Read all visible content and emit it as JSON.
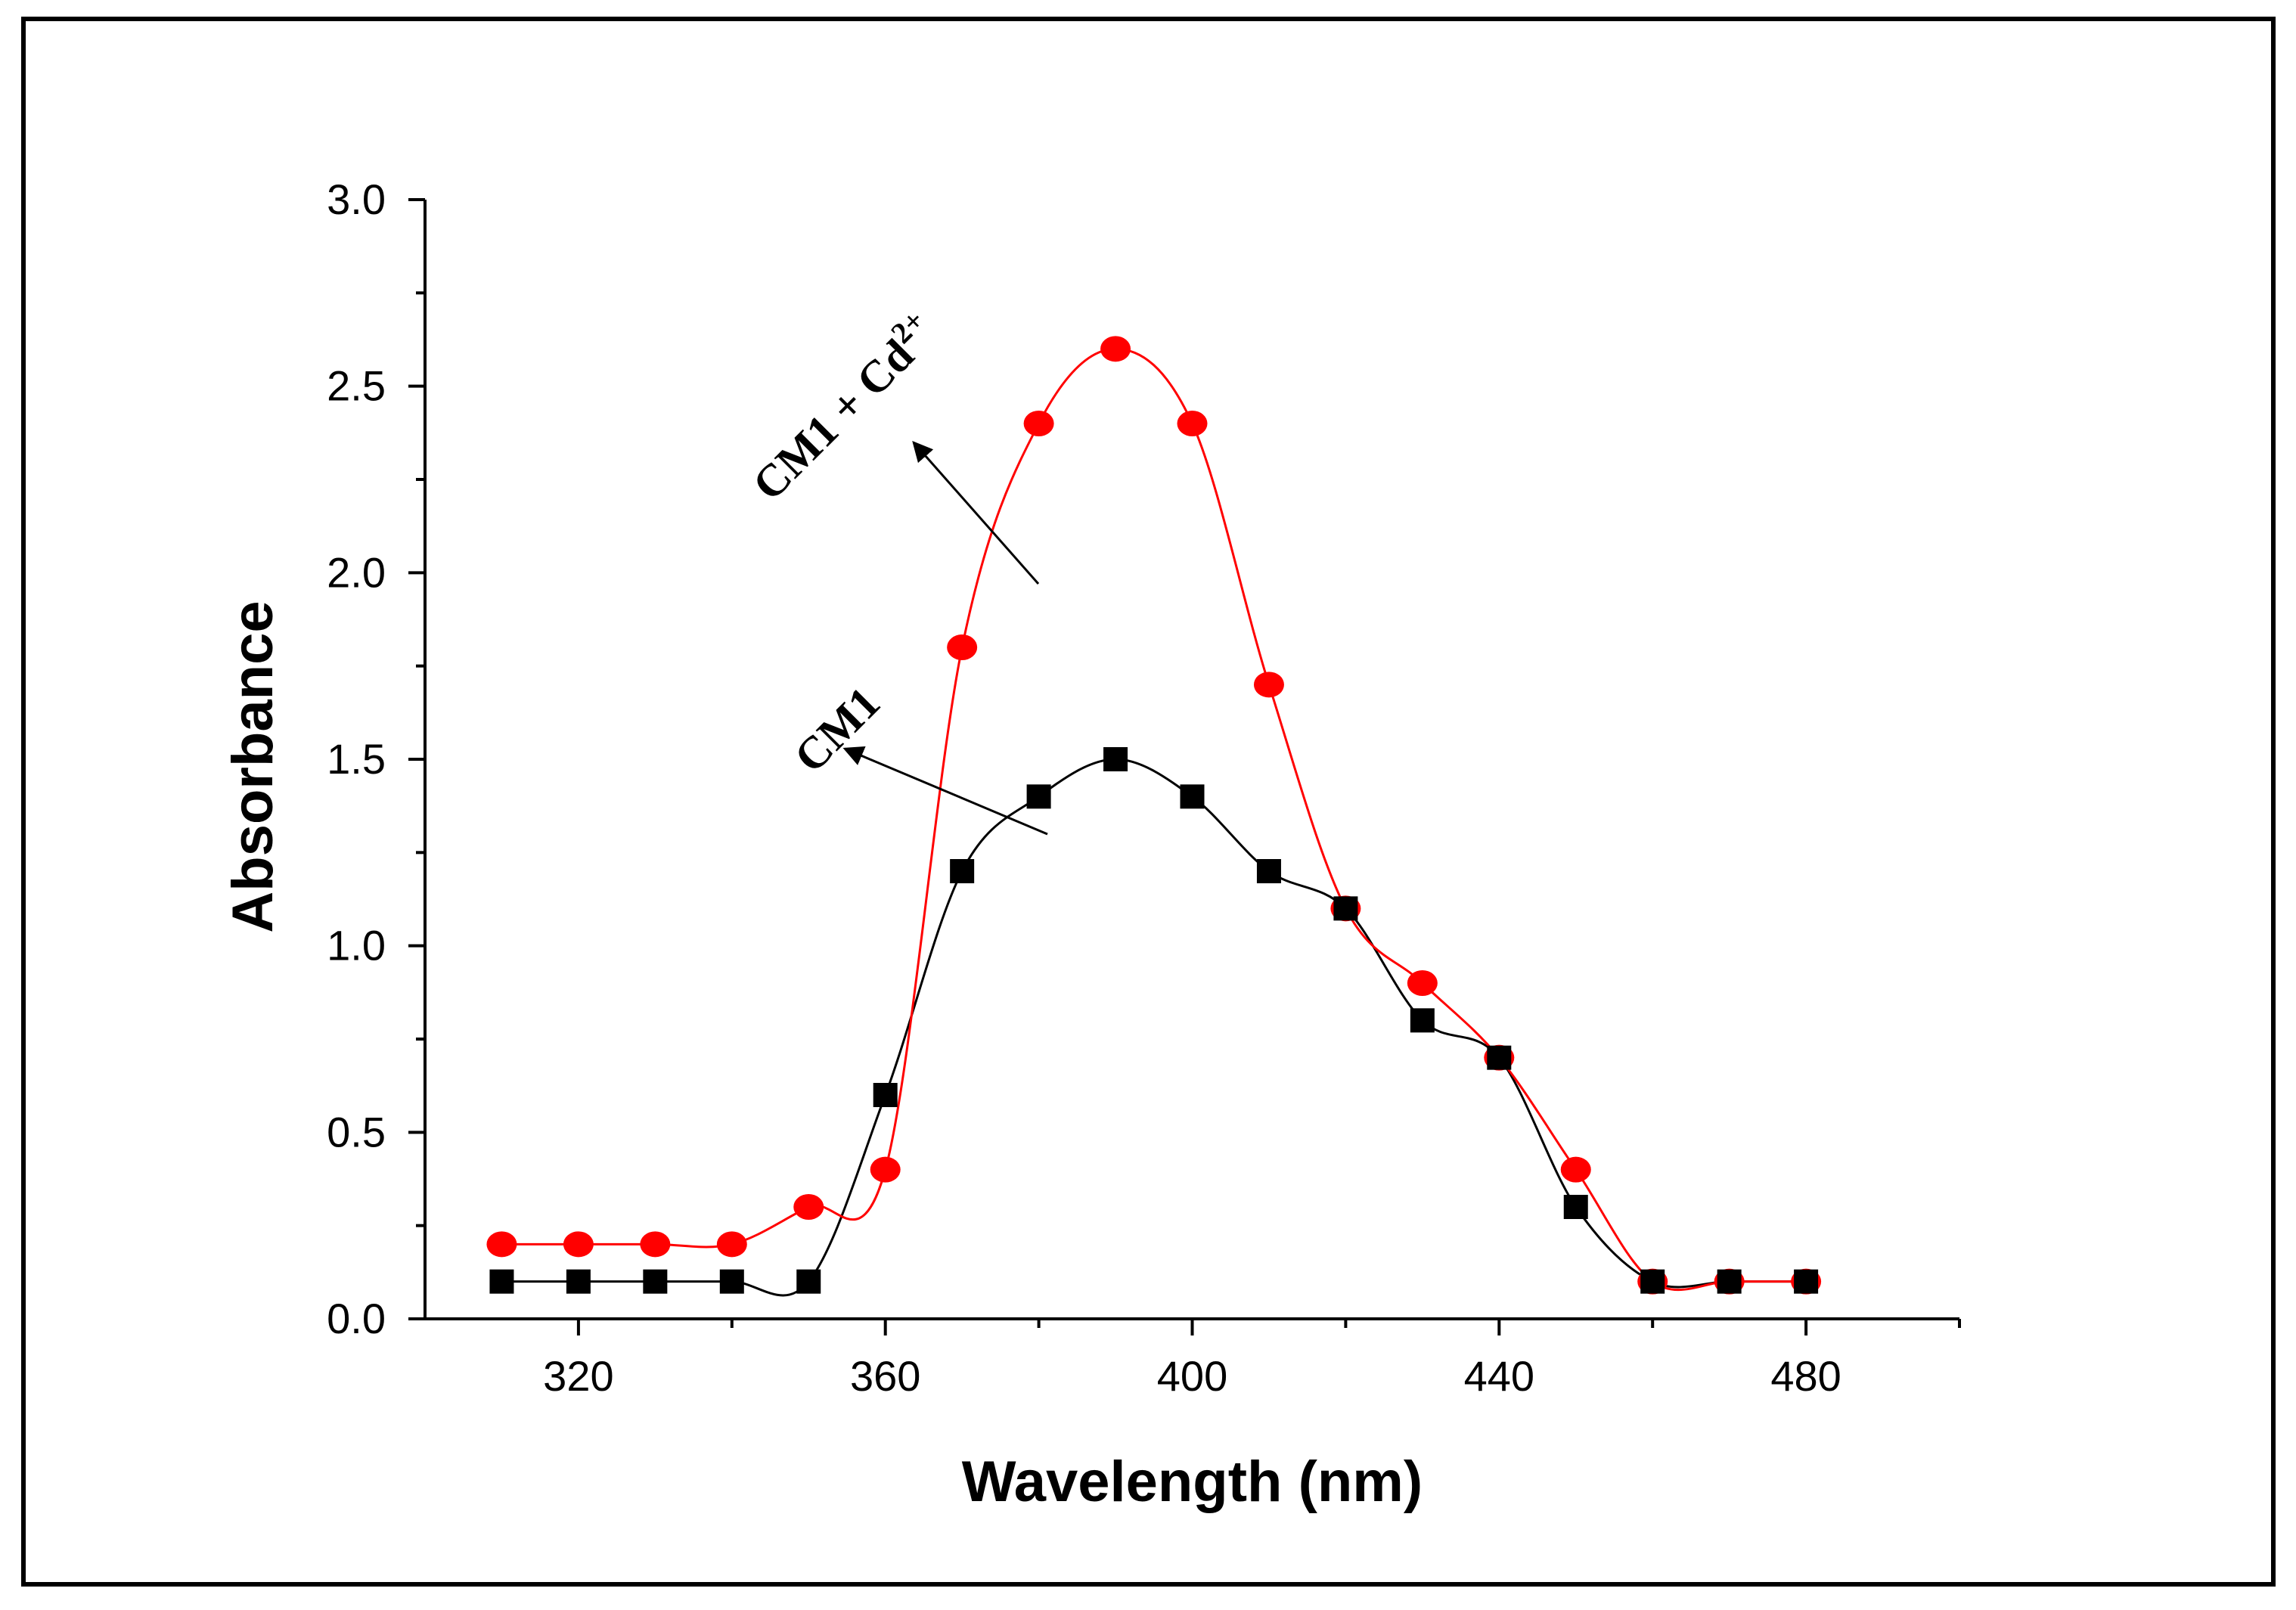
{
  "chart_data": {
    "type": "line",
    "title": "",
    "xlabel": "Wavelength (nm)",
    "ylabel": "Absorbance",
    "xlim": [
      300,
      500
    ],
    "ylim": [
      0.0,
      3.0
    ],
    "x_ticks": [
      320,
      360,
      400,
      440,
      480
    ],
    "x_tick_labels": [
      "320",
      "360",
      "400",
      "440",
      "480"
    ],
    "y_ticks": [
      0.0,
      0.5,
      1.0,
      1.5,
      2.0,
      2.5,
      3.0
    ],
    "y_tick_labels": [
      "0.0",
      "0.5",
      "1.0",
      "1.5",
      "2.0",
      "2.5",
      "3.0"
    ],
    "grid": false,
    "x": [
      310,
      320,
      330,
      340,
      350,
      360,
      370,
      380,
      390,
      400,
      410,
      420,
      430,
      440,
      450,
      460,
      470,
      480
    ],
    "series": [
      {
        "name": "CM1",
        "color": "#000000",
        "marker": "square",
        "values": [
          0.1,
          0.1,
          0.1,
          0.1,
          0.1,
          0.6,
          1.2,
          1.4,
          1.5,
          1.4,
          1.2,
          1.1,
          0.8,
          0.7,
          0.3,
          0.1,
          0.1,
          0.1
        ]
      },
      {
        "name": "CM1 + Cd2+",
        "color": "#ff0000",
        "marker": "circle",
        "values": [
          0.2,
          0.2,
          0.2,
          0.2,
          0.3,
          0.4,
          1.8,
          2.4,
          2.6,
          2.4,
          1.7,
          1.1,
          0.9,
          0.7,
          0.4,
          0.1,
          0.1,
          0.1
        ]
      }
    ],
    "annotations": [
      {
        "name": "annotation-cm1",
        "text": "CM1",
        "series": "CM1"
      },
      {
        "name": "annotation-cm1-cd",
        "text_main": "CM1 + Cd",
        "text_sup": "2+",
        "series": "CM1 + Cd2+"
      }
    ]
  }
}
